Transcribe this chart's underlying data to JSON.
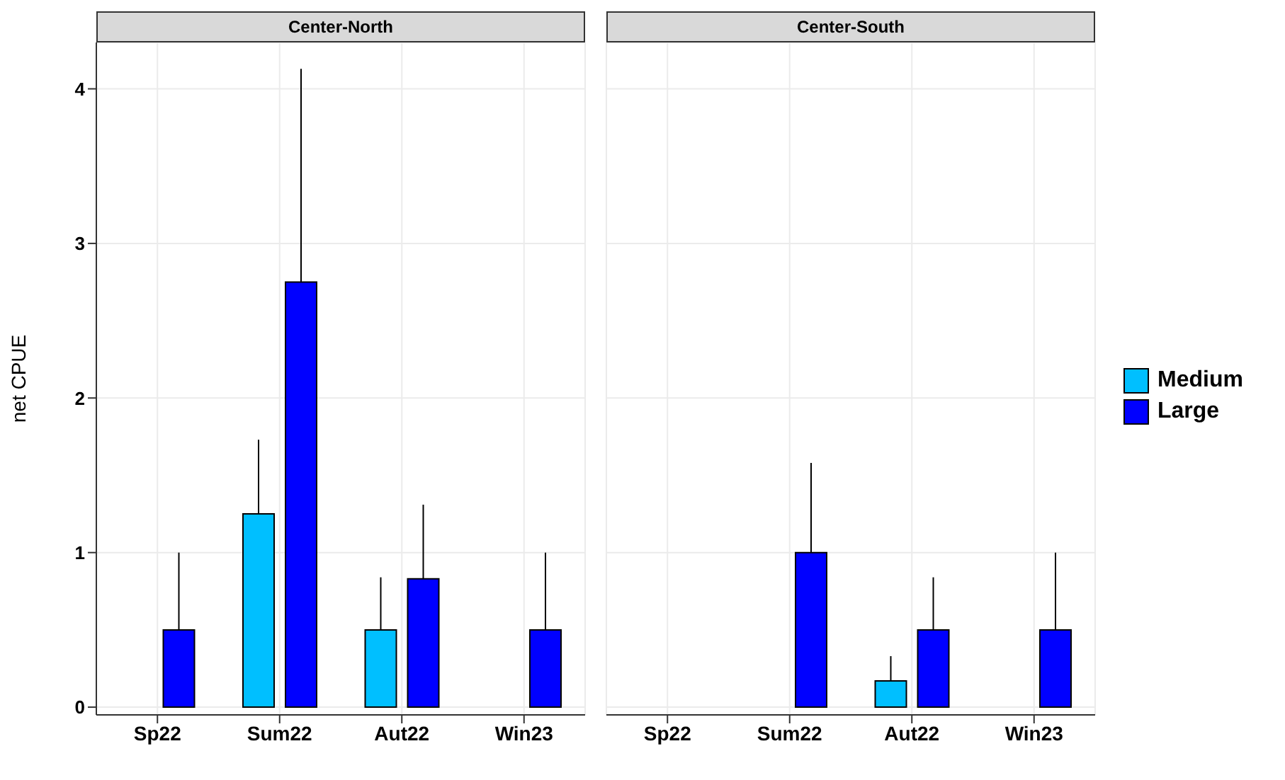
{
  "chart_data": [
    {
      "type": "bar",
      "title": "Center-North",
      "ylabel": "net CPUE",
      "categories": [
        "Sp22",
        "Sum22",
        "Aut22",
        "Win23"
      ],
      "ylim": [
        -0.05,
        4.3
      ],
      "yticks": [
        0,
        1,
        2,
        3,
        4
      ],
      "grid": true,
      "legend": "right",
      "series": [
        {
          "name": "Medium",
          "color": "#00bfff",
          "values": [
            0,
            1.25,
            0.5,
            0
          ],
          "errors": [
            null,
            [
              1.25,
              1.73
            ],
            [
              0.5,
              0.84
            ],
            null
          ]
        },
        {
          "name": "Large",
          "color": "#0000ff",
          "values": [
            0.5,
            2.75,
            0.83,
            0.5
          ],
          "errors": [
            [
              0.5,
              1.0
            ],
            [
              2.75,
              4.13
            ],
            [
              0.83,
              1.31
            ],
            [
              0.5,
              1.0
            ]
          ]
        }
      ]
    },
    {
      "type": "bar",
      "title": "Center-South",
      "categories": [
        "Sp22",
        "Sum22",
        "Aut22",
        "Win23"
      ],
      "ylim": [
        -0.05,
        4.3
      ],
      "yticks": [
        0,
        1,
        2,
        3,
        4
      ],
      "grid": true,
      "tick_labels": "x",
      "series": [
        {
          "color": "#00bfff",
          "values": [
            0,
            0,
            0.17,
            0
          ],
          "errors": [
            null,
            null,
            [
              0.17,
              0.33
            ],
            null
          ]
        },
        {
          "color": "#0000ff",
          "values": [
            0,
            1.0,
            0.5,
            0.5
          ],
          "errors": [
            null,
            [
              1.0,
              1.58
            ],
            [
              0.5,
              0.84
            ],
            [
              0.5,
              1.0
            ]
          ]
        }
      ]
    }
  ]
}
